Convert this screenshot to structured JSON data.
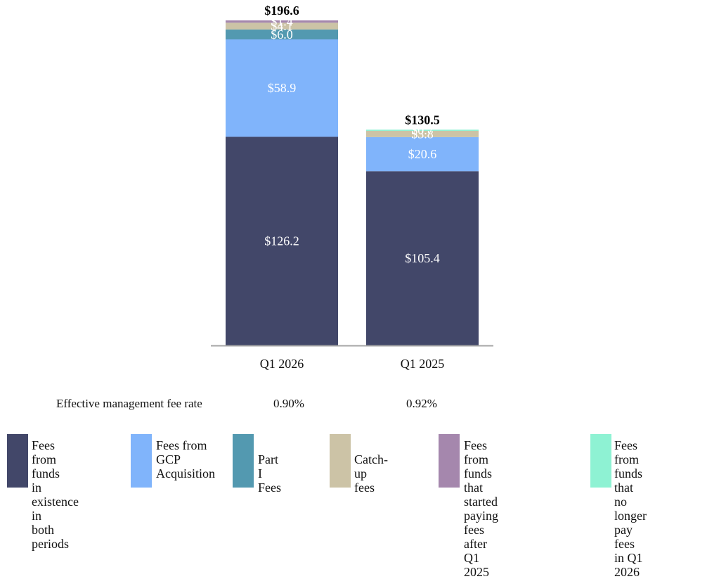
{
  "chart_data": {
    "type": "bar",
    "stacked": true,
    "categories": [
      "Q1 2026",
      "Q1 2025"
    ],
    "series": [
      {
        "name": "Fees from funds in existence in both periods",
        "color": "#424769",
        "values": [
          126.2,
          105.4
        ],
        "labels": [
          "$126.2",
          "$105.4"
        ]
      },
      {
        "name": "Fees from GCP Acquisition",
        "color": "#80b4fb",
        "values": [
          58.9,
          20.6
        ],
        "labels": [
          "$58.9",
          "$20.6"
        ]
      },
      {
        "name": "Part I Fees",
        "color": "#5399b0",
        "values": [
          6.0,
          0
        ],
        "labels": [
          "$6.0",
          ""
        ]
      },
      {
        "name": "Catch-up fees",
        "color": "#ccc3a6",
        "values": [
          4.1,
          3.8
        ],
        "labels": [
          "$4.1",
          "$3.8"
        ]
      },
      {
        "name": "Fees from funds that started paying fees after Q1 2025",
        "color": "#a587ad",
        "values": [
          1.4,
          0
        ],
        "labels": [
          "$1.4",
          ""
        ]
      },
      {
        "name": "Fees from funds that no longer pay fees in Q1 2026",
        "color": "#8ef2d3",
        "values": [
          0,
          0.7
        ],
        "labels": [
          "",
          "$0.7"
        ]
      }
    ],
    "totals": [
      196.6,
      130.5
    ],
    "total_labels": [
      "$196.6",
      "$130.5"
    ],
    "ylim": [
      0,
      196.6
    ],
    "grid": false,
    "legend_position": "bottom"
  },
  "rate": {
    "label": "Effective management fee rate",
    "values": [
      "0.90%",
      "0.92%"
    ]
  },
  "legend": [
    {
      "text": "Fees from funds\nin existence in\nboth periods",
      "color": "#424769"
    },
    {
      "text": "Fees from\nGCP\nAcquisition",
      "color": "#80b4fb"
    },
    {
      "text": "Part I Fees",
      "color": "#5399b0"
    },
    {
      "text": "Catch-up fees",
      "color": "#ccc3a6"
    },
    {
      "text": "Fees from funds that\nstarted paying fees\nafter Q1 2025",
      "color": "#a587ad"
    },
    {
      "text": "Fees from funds\nthat no longer pay\nfees in Q1 2026",
      "color": "#8ef2d3"
    }
  ]
}
